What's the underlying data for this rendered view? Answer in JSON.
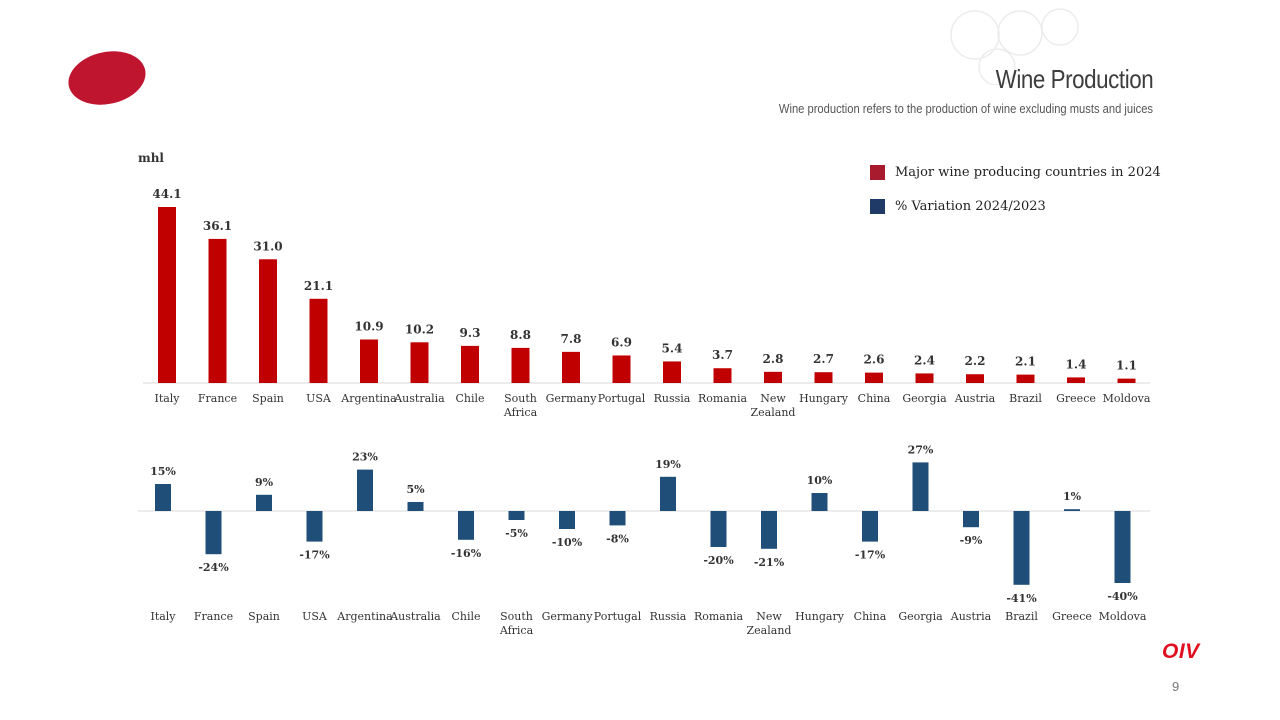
{
  "header": {
    "title": "Wine Production",
    "subtitle": "Wine production refers to the production of wine excluding musts and juices"
  },
  "colors": {
    "production": "#c00000",
    "variation": "#1f4e79",
    "accent": "#c0152f",
    "logo": "#e01020"
  },
  "icons": {
    "brand_blob": "red-oval-logo-icon",
    "watermark": "grapes-watermark-icon"
  },
  "legend": [
    {
      "label": "Major wine producing countries in 2024",
      "color": "#a81a2e"
    },
    {
      "label": "% Variation 2024/2023",
      "color": "#1f3a66"
    }
  ],
  "footer": {
    "logo_text": "OIV",
    "page_number": "9"
  },
  "chart_data": [
    {
      "type": "bar",
      "unit_label": "mhl",
      "categories": [
        "Italy",
        "France",
        "Spain",
        "USA",
        "Argentina",
        "Australia",
        "Chile",
        "South Africa",
        "Germany",
        "Portugal",
        "Russia",
        "Romania",
        "New Zealand",
        "Hungary",
        "China",
        "Georgia",
        "Austria",
        "Brazil",
        "Greece",
        "Moldova"
      ],
      "values": [
        44.1,
        36.1,
        31.0,
        21.1,
        10.9,
        10.2,
        9.3,
        8.8,
        7.8,
        6.9,
        5.4,
        3.7,
        2.8,
        2.7,
        2.6,
        2.4,
        2.2,
        2.1,
        1.4,
        1.1
      ],
      "labels": [
        "44.1",
        "36.1",
        "31.0",
        "21.1",
        "10.9",
        "10.2",
        "9.3",
        "8.8",
        "7.8",
        "6.9",
        "5.4",
        "3.7",
        "2.8",
        "2.7",
        "2.6",
        "2.4",
        "2.2",
        "2.1",
        "1.4",
        "1.1"
      ],
      "ylim": [
        0,
        45
      ],
      "grid": false
    },
    {
      "type": "bar",
      "categories": [
        "Italy",
        "France",
        "Spain",
        "USA",
        "Argentina",
        "Australia",
        "Chile",
        "South Africa",
        "Germany",
        "Portugal",
        "Russia",
        "Romania",
        "New Zealand",
        "Hungary",
        "China",
        "Georgia",
        "Austria",
        "Brazil",
        "Greece",
        "Moldova"
      ],
      "values": [
        15,
        -24,
        9,
        -17,
        23,
        5,
        -16,
        -5,
        -10,
        -8,
        19,
        -20,
        -21,
        10,
        -17,
        27,
        -9,
        -41,
        1,
        -40
      ],
      "labels": [
        "15%",
        "-24%",
        "9%",
        "-17%",
        "23%",
        "5%",
        "-16%",
        "-5%",
        "-10%",
        "-8%",
        "19%",
        "-20%",
        "-21%",
        "10%",
        "-17%",
        "27%",
        "-9%",
        "-41%",
        "1%",
        "-40%"
      ],
      "ylim": [
        -45,
        30
      ],
      "grid": false
    }
  ]
}
